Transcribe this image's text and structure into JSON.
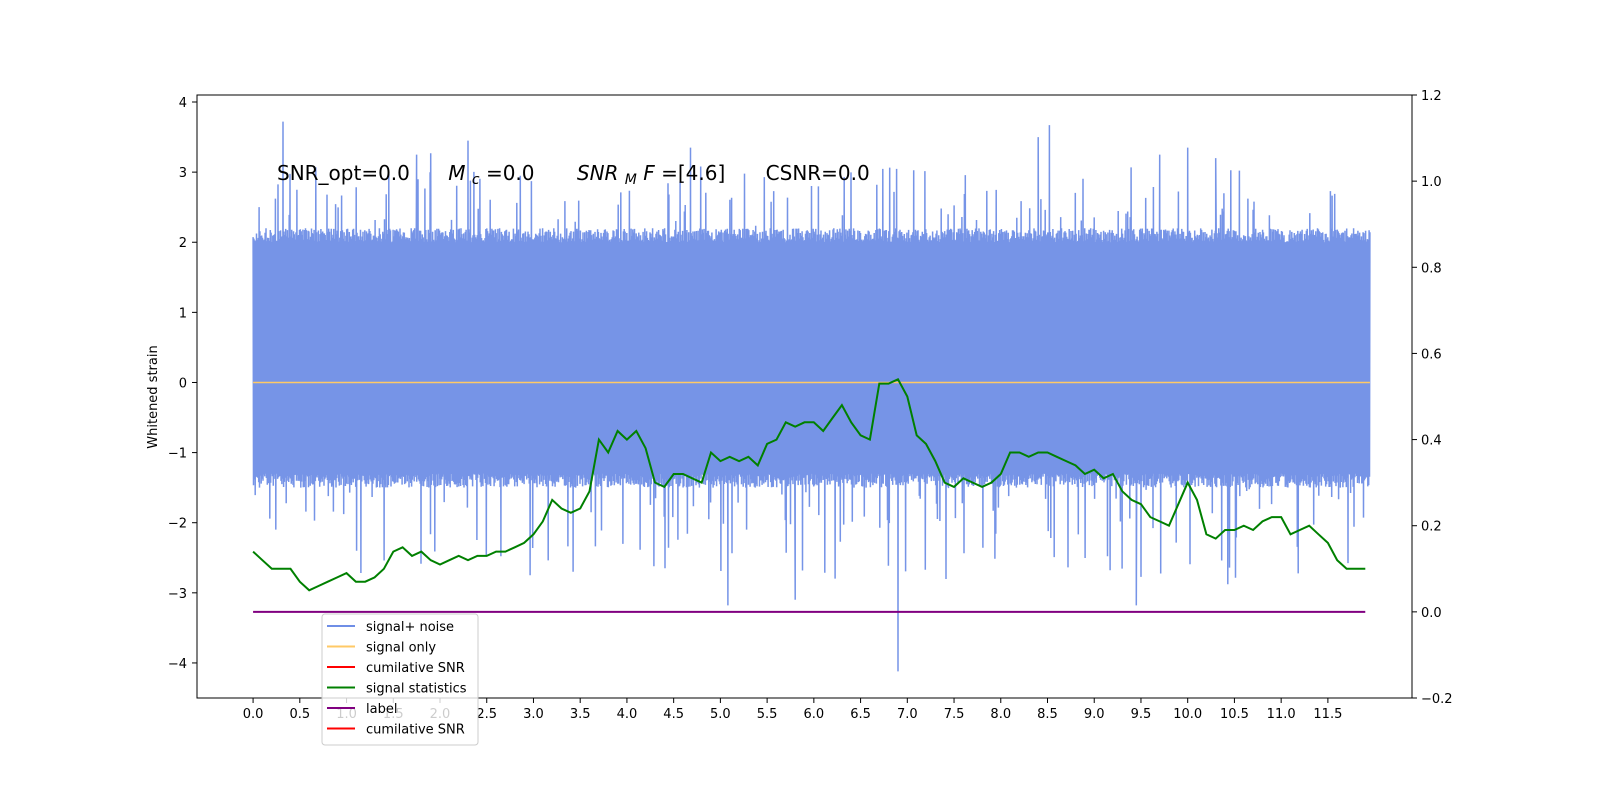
{
  "chart_data": {
    "type": "line",
    "ylabel": "Whitened strain",
    "annotations": {
      "snr_opt": "SNR_opt=0.0",
      "mc_sym": "M",
      "mc_sub": "c",
      "mc_val": "=0.0",
      "snrmf_sym": "SNR",
      "snrmf_sub": "M",
      "snrmf_tail": "F",
      "snrmf_val": "=[4.6]",
      "csnr": "CSNR=0.0"
    },
    "x_axis": {
      "lim": [
        -0.6,
        12.4
      ],
      "ticks": [
        0.0,
        0.5,
        1.0,
        1.5,
        2.0,
        2.5,
        3.0,
        3.5,
        4.0,
        4.5,
        5.0,
        5.5,
        6.0,
        6.5,
        7.0,
        7.5,
        8.0,
        8.5,
        9.0,
        9.5,
        10.0,
        10.5,
        11.0,
        11.5
      ],
      "tick_labels": [
        "0.0",
        "0.5",
        "1.0",
        "1.5",
        "2.0",
        "2.5",
        "3.0",
        "3.5",
        "4.0",
        "4.5",
        "5.0",
        "5.5",
        "6.0",
        "6.5",
        "7.0",
        "7.5",
        "8.0",
        "8.5",
        "9.0",
        "9.5",
        "10.0",
        "10.5",
        "11.0",
        "11.5"
      ]
    },
    "y_left": {
      "lim": [
        -4.5,
        4.1
      ],
      "ticks": [
        -4,
        -3,
        -2,
        -1,
        0,
        1,
        2,
        3,
        4
      ],
      "tick_labels": [
        "−4",
        "−3",
        "−2",
        "−1",
        "0",
        "1",
        "2",
        "3",
        "4"
      ]
    },
    "y_right": {
      "lim": [
        -0.2,
        1.2
      ],
      "ticks": [
        -0.2,
        0.0,
        0.2,
        0.4,
        0.6,
        0.8,
        1.0,
        1.2
      ],
      "tick_labels": [
        "−0.2",
        "0.0",
        "0.2",
        "0.4",
        "0.6",
        "0.8",
        "1.0",
        "1.2"
      ]
    },
    "legend": {
      "placement": "lower-left",
      "entries": [
        {
          "label": "signal+ noise",
          "color": "#6f8ee6"
        },
        {
          "label": "signal only",
          "color": "#ffc966"
        },
        {
          "label": "cumilative SNR",
          "color": "#ff0000"
        },
        {
          "label": "signal statistics",
          "color": "#008000"
        },
        {
          "label": "label",
          "color": "#800080"
        },
        {
          "label": "cumilative SNR",
          "color": "#ff0000"
        }
      ]
    },
    "series": [
      {
        "name": "signal+ noise",
        "axis": "left",
        "color": "#6f8ee6",
        "x_range": [
          0.0,
          11.95
        ],
        "envelope_upper": 2.2,
        "envelope_lower": -1.5,
        "spikes": [
          {
            "x": 0.32,
            "y": 3.72
          },
          {
            "x": 1.75,
            "y": 3.25
          },
          {
            "x": 2.3,
            "y": 3.45
          },
          {
            "x": 4.68,
            "y": 3.35
          },
          {
            "x": 6.9,
            "y": -4.12
          },
          {
            "x": 8.4,
            "y": 3.5
          },
          {
            "x": 8.52,
            "y": 3.67
          },
          {
            "x": 9.7,
            "y": 3.25
          },
          {
            "x": 10.0,
            "y": 3.35
          },
          {
            "x": 10.3,
            "y": 3.2
          },
          {
            "x": 9.45,
            "y": -3.18
          },
          {
            "x": 5.08,
            "y": -3.18
          },
          {
            "x": 5.8,
            "y": -3.1
          },
          {
            "x": 1.9,
            "y": 3.27
          }
        ]
      },
      {
        "name": "signal only",
        "axis": "left",
        "color": "#ffc966",
        "x": [
          0.0,
          11.95
        ],
        "y": [
          0.0,
          0.0
        ]
      },
      {
        "name": "signal statistics",
        "axis": "right",
        "color": "#008000",
        "x": [
          0.0,
          0.1,
          0.2,
          0.3,
          0.4,
          0.5,
          0.6,
          0.7,
          0.8,
          0.9,
          1.0,
          1.1,
          1.2,
          1.3,
          1.4,
          1.5,
          1.6,
          1.7,
          1.8,
          1.9,
          2.0,
          2.1,
          2.2,
          2.3,
          2.4,
          2.5,
          2.6,
          2.7,
          2.8,
          2.9,
          3.0,
          3.1,
          3.2,
          3.3,
          3.4,
          3.5,
          3.6,
          3.7,
          3.8,
          3.9,
          4.0,
          4.1,
          4.2,
          4.3,
          4.4,
          4.5,
          4.6,
          4.7,
          4.8,
          4.9,
          5.0,
          5.1,
          5.2,
          5.3,
          5.4,
          5.5,
          5.6,
          5.7,
          5.8,
          5.9,
          6.0,
          6.1,
          6.2,
          6.3,
          6.4,
          6.5,
          6.6,
          6.7,
          6.8,
          6.9,
          7.0,
          7.1,
          7.2,
          7.3,
          7.4,
          7.5,
          7.6,
          7.7,
          7.8,
          7.9,
          8.0,
          8.1,
          8.2,
          8.3,
          8.4,
          8.5,
          8.6,
          8.7,
          8.8,
          8.9,
          9.0,
          9.1,
          9.2,
          9.3,
          9.4,
          9.5,
          9.6,
          9.7,
          9.8,
          9.9,
          10.0,
          10.1,
          10.2,
          10.3,
          10.4,
          10.5,
          10.6,
          10.7,
          10.8,
          10.9,
          11.0,
          11.1,
          11.2,
          11.3,
          11.4,
          11.5,
          11.6,
          11.7,
          11.8,
          11.9
        ],
        "y": [
          0.14,
          0.12,
          0.1,
          0.1,
          0.1,
          0.07,
          0.05,
          0.06,
          0.07,
          0.08,
          0.09,
          0.07,
          0.07,
          0.08,
          0.1,
          0.14,
          0.15,
          0.13,
          0.14,
          0.12,
          0.11,
          0.12,
          0.13,
          0.12,
          0.13,
          0.13,
          0.14,
          0.14,
          0.15,
          0.16,
          0.18,
          0.21,
          0.26,
          0.24,
          0.23,
          0.24,
          0.28,
          0.4,
          0.37,
          0.42,
          0.4,
          0.42,
          0.38,
          0.3,
          0.29,
          0.32,
          0.32,
          0.31,
          0.3,
          0.37,
          0.35,
          0.36,
          0.35,
          0.36,
          0.34,
          0.39,
          0.4,
          0.44,
          0.43,
          0.44,
          0.44,
          0.42,
          0.45,
          0.48,
          0.44,
          0.41,
          0.4,
          0.53,
          0.53,
          0.54,
          0.5,
          0.41,
          0.39,
          0.35,
          0.3,
          0.29,
          0.31,
          0.3,
          0.29,
          0.3,
          0.32,
          0.37,
          0.37,
          0.36,
          0.37,
          0.37,
          0.36,
          0.35,
          0.34,
          0.32,
          0.33,
          0.31,
          0.32,
          0.28,
          0.26,
          0.25,
          0.22,
          0.21,
          0.2,
          0.25,
          0.3,
          0.26,
          0.18,
          0.17,
          0.19,
          0.19,
          0.2,
          0.19,
          0.21,
          0.22,
          0.22,
          0.18,
          0.19,
          0.2,
          0.18,
          0.16,
          0.12,
          0.1,
          0.1,
          0.1
        ]
      },
      {
        "name": "label",
        "axis": "right",
        "color": "#800080",
        "x": [
          0.0,
          11.9
        ],
        "y": [
          0.0,
          0.0
        ]
      }
    ]
  }
}
